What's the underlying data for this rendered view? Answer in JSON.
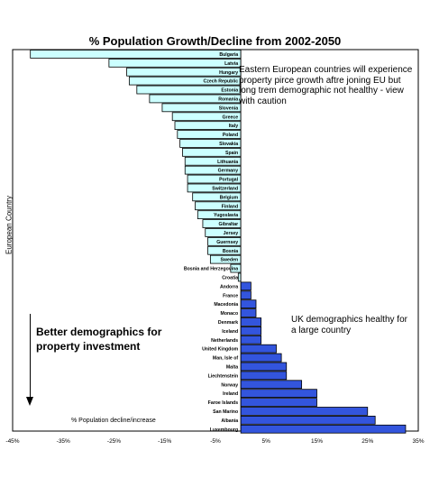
{
  "chart_data": {
    "type": "bar",
    "orientation": "horizontal",
    "title": "% Population Growth/Decline from 2002-2050",
    "ylabel": "European Country",
    "xlabel": "% Population decline/increase",
    "xlim": [
      -45,
      35
    ],
    "xticks": [
      "-45%",
      "-35%",
      "-25%",
      "-15%",
      "-5%",
      "5%",
      "15%",
      "25%",
      "35%"
    ],
    "grid": false,
    "categories": [
      "Bulgaria",
      "Latvia",
      "Hungary",
      "Czech Republic",
      "Estonia",
      "Romania",
      "Slovenia",
      "Greece",
      "Italy",
      "Poland",
      "Slovakia",
      "Spain",
      "Lithuania",
      "Germany",
      "Portugal",
      "Switzerland",
      "Belgium",
      "Finland",
      "Yugoslavia",
      "Gibraltar",
      "Jersey",
      "Guernsey",
      "Bosnia",
      "Sweden",
      "Bosnia and Herzegovina",
      "Croatia",
      "Andorra",
      "France",
      "Macedonia",
      "Monaco",
      "Denmark",
      "Iceland",
      "Netherlands",
      "United Kingdom",
      "Man, Isle of",
      "Malta",
      "Liechtenstein",
      "Norway",
      "Ireland",
      "Faroe Islands",
      "San Marino",
      "Albania",
      "Luxembourg"
    ],
    "values": [
      -41.5,
      -26,
      -22.5,
      -22,
      -20.5,
      -18,
      -15.5,
      -13.5,
      -13,
      -12.5,
      -12,
      -11.5,
      -11,
      -11,
      -10.5,
      -10.5,
      -9.5,
      -9,
      -8.5,
      -7.5,
      -7,
      -6.5,
      -6.5,
      -6,
      -2,
      -0.5,
      2,
      2,
      3,
      3,
      4,
      4,
      4,
      7,
      8,
      9,
      9,
      12,
      15,
      15,
      25,
      26.5,
      32.5
    ],
    "colors": {
      "negative": "#ccffff",
      "positive": "#3355dd",
      "stroke": "#000000"
    },
    "annotations": [
      "Eastern European countries will experience property pirce growth aftre joning EU but long trem demographic not healthy - view with caution",
      "UK demographics healthy for a large country",
      "Better demographics for property investment"
    ]
  }
}
